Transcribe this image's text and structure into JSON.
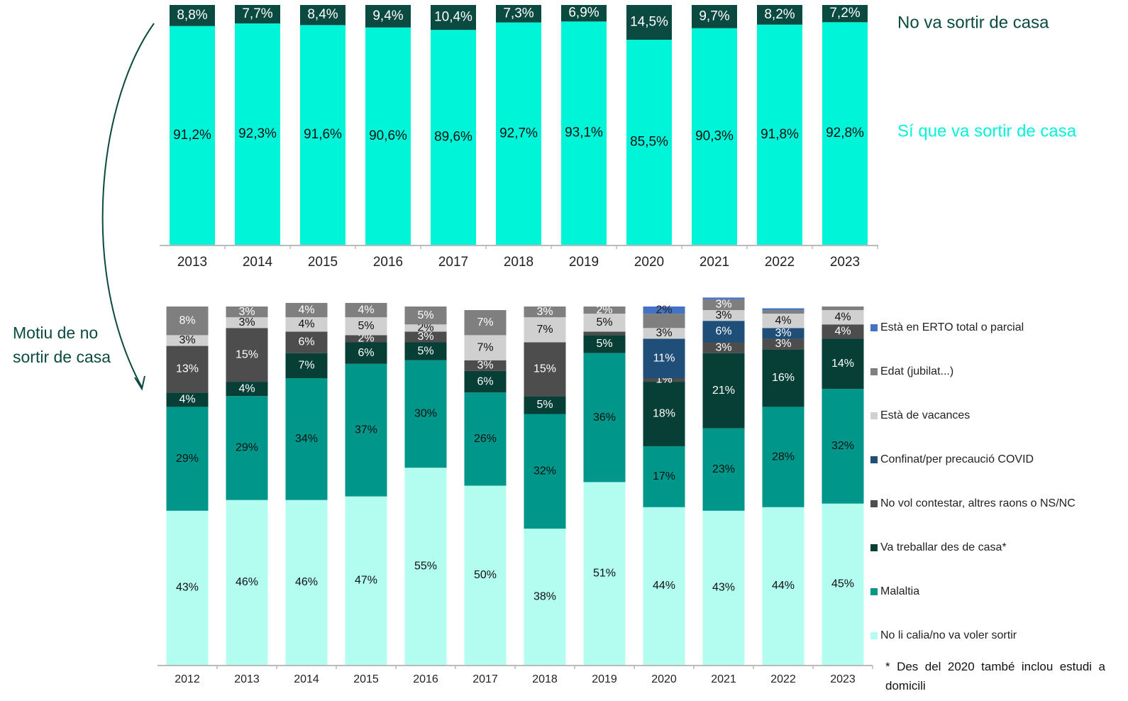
{
  "chart_data": [
    {
      "type": "bar",
      "stacked": true,
      "categories": [
        "2013",
        "2014",
        "2015",
        "2016",
        "2017",
        "2018",
        "2019",
        "2020",
        "2021",
        "2022",
        "2023"
      ],
      "ylim": [
        0,
        100
      ],
      "series": [
        {
          "name": "Sí que va sortir de casa",
          "color": "#00f5d8",
          "label_color": "#111111",
          "values": [
            91.2,
            92.3,
            91.6,
            90.6,
            89.6,
            92.7,
            93.1,
            85.5,
            90.3,
            91.8,
            92.8
          ],
          "value_labels": [
            "91,2%",
            "92,3%",
            "91,6%",
            "90,6%",
            "89,6%",
            "92,7%",
            "93,1%",
            "85,5%",
            "90,3%",
            "91,8%",
            "92,8%"
          ]
        },
        {
          "name": "No va sortir de casa",
          "color": "#0b4a40",
          "label_color": "#ffffff",
          "values": [
            8.8,
            7.7,
            8.4,
            9.4,
            10.4,
            7.3,
            6.9,
            14.5,
            9.7,
            8.2,
            7.2
          ],
          "value_labels": [
            "8,8%",
            "7,7%",
            "8,4%",
            "9,4%",
            "10,4%",
            "7,3%",
            "6,9%",
            "14,5%",
            "9,7%",
            "8,2%",
            "7,2%"
          ]
        }
      ]
    },
    {
      "type": "bar",
      "stacked": true,
      "categories": [
        "2012",
        "2013",
        "2014",
        "2015",
        "2016",
        "2017",
        "2018",
        "2019",
        "2020",
        "2021",
        "2022",
        "2023"
      ],
      "ylim": [
        0,
        100
      ],
      "series": [
        {
          "name": "No li calia/no va voler sortir",
          "color": "#b2fcf0",
          "label_color": "#111111",
          "values": [
            43,
            46,
            46,
            47,
            55,
            50,
            38,
            51,
            44,
            43,
            44,
            45
          ],
          "value_labels": [
            "43%",
            "46%",
            "46%",
            "47%",
            "55%",
            "50%",
            "38%",
            "51%",
            "44%",
            "43%",
            "44%",
            "45%"
          ]
        },
        {
          "name": "Malaltia",
          "color": "#00968a",
          "label_color": "#111111",
          "values": [
            29,
            29,
            34,
            37,
            30,
            26,
            32,
            36,
            17,
            23,
            28,
            32
          ],
          "value_labels": [
            "29%",
            "29%",
            "34%",
            "37%",
            "30%",
            "26%",
            "32%",
            "36%",
            "17%",
            "23%",
            "28%",
            "32%"
          ]
        },
        {
          "name": "Va treballar des de casa*",
          "color": "#073f36",
          "label_color": "#ffffff",
          "values": [
            4,
            4,
            7,
            6,
            5,
            6,
            5,
            5,
            18,
            21,
            16,
            14
          ],
          "value_labels": [
            "4%",
            "4%",
            "7%",
            "6%",
            "5%",
            "6%",
            "5%",
            "5%",
            "18%",
            "21%",
            "16%",
            "14%"
          ]
        },
        {
          "name": "No vol contestar, altres raons o NS/NC",
          "color": "#4d4d4d",
          "label_color": "#ffffff",
          "values": [
            13,
            15,
            6,
            2,
            3,
            3,
            15,
            1,
            1,
            3,
            3,
            4
          ],
          "value_labels": [
            "13%",
            "15%",
            "6%",
            "2%",
            "3%",
            "3%",
            "15%",
            null,
            "1%",
            "3%",
            "3%",
            "4%"
          ]
        },
        {
          "name": "Confinat/per precaució COVID",
          "color": "#1f4e79",
          "label_color": "#ffffff",
          "values": [
            0,
            0,
            0,
            0,
            0,
            0,
            0,
            0,
            11,
            6,
            3,
            0
          ],
          "value_labels": [
            null,
            null,
            null,
            null,
            null,
            null,
            null,
            null,
            "11%",
            "6%",
            "3%",
            null
          ]
        },
        {
          "name": "Està de vacances",
          "color": "#d0d0d0",
          "label_color": "#111111",
          "values": [
            3,
            3,
            4,
            5,
            2,
            7,
            7,
            5,
            3,
            3,
            4,
            4
          ],
          "value_labels": [
            "3%",
            "3%",
            "4%",
            "5%",
            "2%",
            "7%",
            "7%",
            "5%",
            "3%",
            "3%",
            "4%",
            "4%"
          ]
        },
        {
          "name": "Edat (jubilat...)",
          "color": "#7f7f7f",
          "label_color": "#ffffff",
          "values": [
            8,
            3,
            4,
            4,
            5,
            7,
            3,
            2,
            4,
            3,
            1,
            1
          ],
          "value_labels": [
            "8%",
            "3%",
            "4%",
            "4%",
            "5%",
            "7%",
            "3%",
            "2%",
            null,
            "3%",
            null,
            null
          ]
        },
        {
          "name": "Està en ERTO total o parcial",
          "color": "#4472c4",
          "label_color": "#222222",
          "values": [
            0,
            0,
            0,
            0,
            0,
            0,
            0,
            0,
            2,
            0.5,
            0.5,
            0
          ],
          "value_labels": [
            null,
            null,
            null,
            null,
            null,
            null,
            null,
            null,
            "2%",
            null,
            null,
            null
          ]
        }
      ]
    }
  ],
  "notes": {
    "side_label": "Motiu de no sortir de casa",
    "footnote": "* Des del 2020 també inclou estudi a domicili"
  }
}
